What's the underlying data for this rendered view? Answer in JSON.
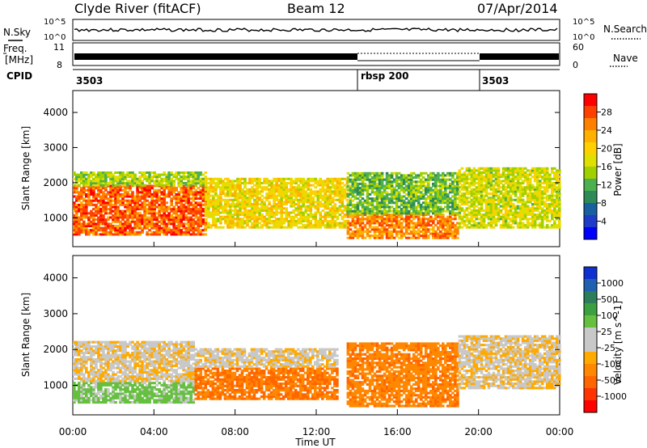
{
  "header": {
    "station": "Clyde River (fitACF)",
    "beam": "Beam 12",
    "date": "07/Apr/2014"
  },
  "strip_labels": {
    "nsky": "N.Sky",
    "nsearch": "N.Search",
    "freq_line1": "Freq.",
    "freq_line2": "[MHz]",
    "nave": "Nave",
    "cpid": "CPID",
    "nsky_ticks": [
      "10^5",
      "10^0"
    ],
    "nsearch_ticks": [
      "10^5",
      "10^0"
    ],
    "freq_ticks": [
      "11",
      "8"
    ],
    "nave_ticks": [
      "60",
      "0"
    ]
  },
  "cpid_segments": [
    {
      "label": "3503",
      "start_h": 0
    },
    {
      "label": "rbsp 200",
      "start_h": 14
    },
    {
      "label": "3503",
      "start_h": 20
    }
  ],
  "time_axis": {
    "label": "Time UT",
    "ticks": [
      "00:00",
      "04:00",
      "08:00",
      "12:00",
      "16:00",
      "20:00",
      "00:00"
    ],
    "range_h": [
      0,
      24
    ]
  },
  "power_colorbar": {
    "label": "Power [dB]",
    "ticks": [
      "28",
      "24",
      "20",
      "16",
      "12",
      "8",
      "4"
    ],
    "colors": [
      "#ff0000",
      "#ff4000",
      "#ff8000",
      "#ffb000",
      "#ffd000",
      "#e0e000",
      "#a0d000",
      "#4caf50",
      "#2e8b57",
      "#1a5fa0",
      "#1e3cc8",
      "#0000ff"
    ]
  },
  "velocity_colorbar": {
    "label": "Velocity [m s^-1]",
    "ticks": [
      "1000",
      "500",
      "100",
      "25",
      "-25",
      "-100",
      "-500",
      "-1000"
    ],
    "colors": [
      "#1030d0",
      "#2060b0",
      "#2e7d5a",
      "#3ca040",
      "#66c040",
      "#c8c8c8",
      "#c8c8c8",
      "#ffaa00",
      "#ff8800",
      "#ff6600",
      "#ff3300",
      "#ff0000"
    ]
  },
  "chart_data": [
    {
      "type": "heatmap",
      "name_printed": "",
      "ylabel": "Slant Range [km]",
      "xlabel": "",
      "yticks": [
        1000,
        2000,
        3000,
        4000
      ],
      "ylim": [
        200,
        4600
      ],
      "xlim_h": [
        0,
        24
      ],
      "value": "power_dB",
      "bands": [
        {
          "t0": 0.0,
          "t1": 6.5,
          "r0": 500,
          "r1": 1900,
          "v": 26
        },
        {
          "t0": 0.0,
          "t1": 6.5,
          "r0": 1900,
          "r1": 2300,
          "v": 14
        },
        {
          "t0": 6.5,
          "t1": 13.5,
          "r0": 700,
          "r1": 2100,
          "v": 18
        },
        {
          "t0": 13.5,
          "t1": 19.0,
          "r0": 400,
          "r1": 1100,
          "v": 24
        },
        {
          "t0": 13.5,
          "t1": 19.0,
          "r0": 1100,
          "r1": 2300,
          "v": 12
        },
        {
          "t0": 19.0,
          "t1": 24.0,
          "r0": 700,
          "r1": 2400,
          "v": 16
        }
      ]
    },
    {
      "type": "heatmap",
      "name_printed": "",
      "ylabel": "Slant Range [km]",
      "xlabel": "Time UT",
      "yticks": [
        1000,
        2000,
        3000,
        4000
      ],
      "ylim": [
        200,
        4600
      ],
      "xlim_h": [
        0,
        24
      ],
      "value": "velocity_m_s",
      "bands": [
        {
          "t0": 0.0,
          "t1": 6.0,
          "r0": 500,
          "r1": 1100,
          "v": 150
        },
        {
          "t0": 0.0,
          "t1": 6.0,
          "r0": 1100,
          "r1": 2200,
          "v": 0
        },
        {
          "t0": 6.0,
          "t1": 13.0,
          "r0": 600,
          "r1": 1500,
          "v": -300
        },
        {
          "t0": 6.0,
          "t1": 13.0,
          "r0": 1500,
          "r1": 2000,
          "v": 0
        },
        {
          "t0": 13.5,
          "t1": 19.0,
          "r0": 400,
          "r1": 2200,
          "v": -250
        },
        {
          "t0": 19.0,
          "t1": 24.0,
          "r0": 900,
          "r1": 2400,
          "v": 0
        }
      ]
    }
  ]
}
